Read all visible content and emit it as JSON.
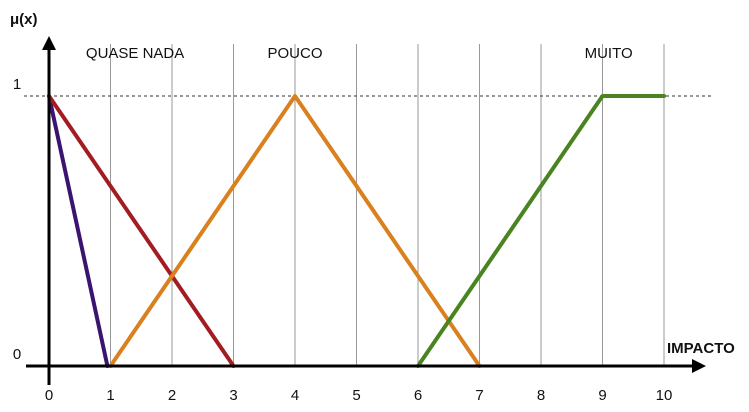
{
  "chart_data": {
    "type": "line",
    "ylabel": "μ(x)",
    "xlabel": "IMPACTO",
    "xlim": [
      0,
      10
    ],
    "ylim": [
      0,
      1
    ],
    "x_ticks": [
      "0",
      "1",
      "2",
      "3",
      "4",
      "5",
      "6",
      "7",
      "8",
      "9",
      "10"
    ],
    "y_ticks": [
      "0",
      "1"
    ],
    "grid": "vertical",
    "set_labels": [
      {
        "text": "QUASE NADA",
        "x": 1.4
      },
      {
        "text": "POUCO",
        "x": 4.0
      },
      {
        "text": "MUITO",
        "x": 9.1
      }
    ],
    "series": [
      {
        "color": "#3b1470",
        "points": [
          [
            0,
            1
          ],
          [
            0.95,
            0
          ]
        ]
      },
      {
        "color": "#a31c22",
        "points": [
          [
            0,
            1
          ],
          [
            3,
            0
          ]
        ]
      },
      {
        "color": "#d9801f",
        "points": [
          [
            1,
            0
          ],
          [
            4,
            1
          ],
          [
            7,
            0
          ]
        ]
      },
      {
        "color": "#4a8420",
        "points": [
          [
            6,
            0
          ],
          [
            9,
            1
          ],
          [
            10,
            1
          ]
        ]
      }
    ]
  }
}
